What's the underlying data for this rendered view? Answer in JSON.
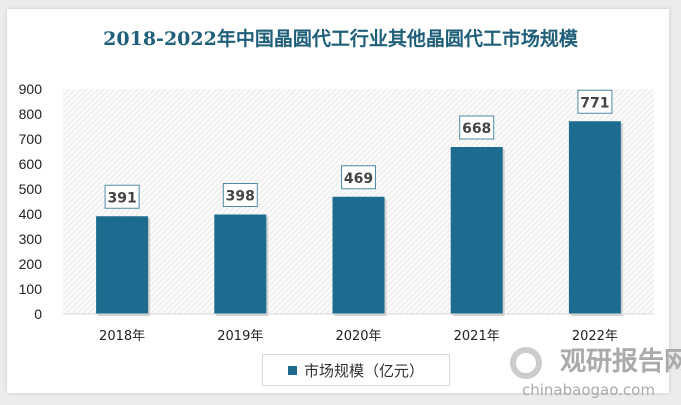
{
  "chart_data": {
    "type": "bar",
    "title": "2018-2022年中国晶圆代工行业其他晶圆代工市场规模",
    "categories": [
      "2018年",
      "2019年",
      "2020年",
      "2021年",
      "2022年"
    ],
    "series": [
      {
        "name": "市场规模（亿元）",
        "values": [
          391,
          398,
          469,
          668,
          771
        ]
      }
    ],
    "ylim": [
      0,
      900
    ],
    "yticks": [
      0,
      100,
      200,
      300,
      400,
      500,
      600,
      700,
      800,
      900
    ],
    "data_labels": true,
    "legend": "bottom",
    "grid": false,
    "colors": {
      "bar": "#1d6b8f",
      "title": "#1f5f7a"
    }
  },
  "watermark": {
    "cn": "观研报告网",
    "en": "chinabaogao.com"
  }
}
